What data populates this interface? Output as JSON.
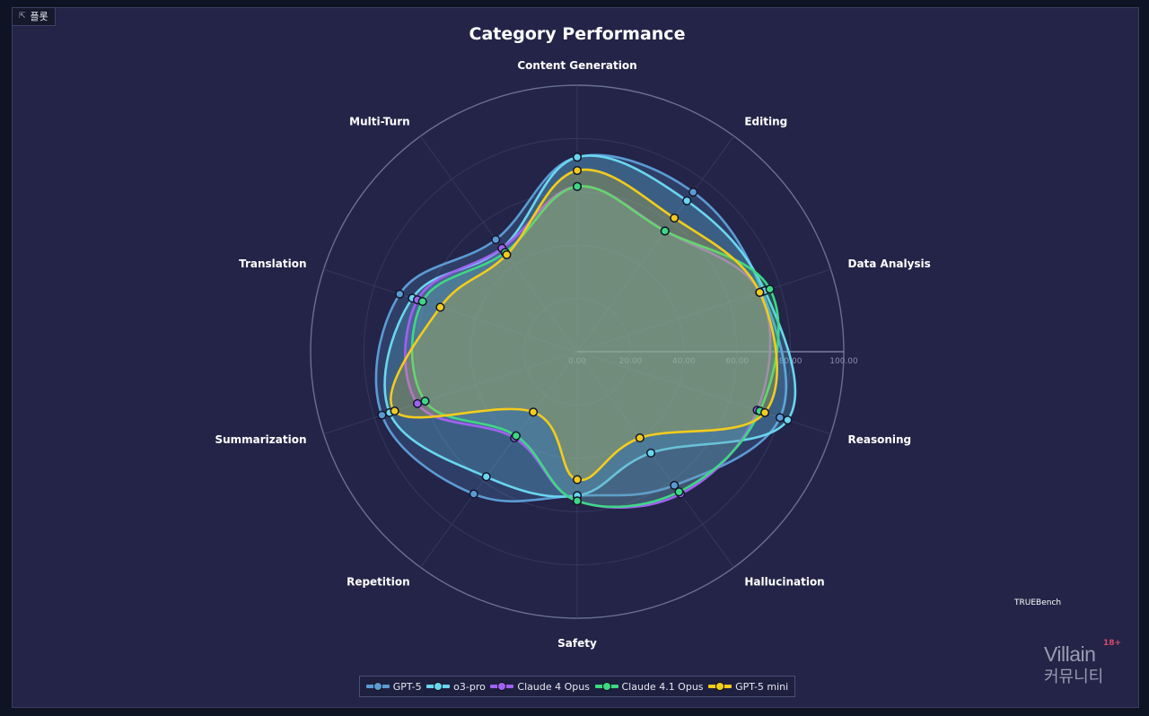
{
  "toolbar": {
    "plot_button_label": "플롯",
    "plot_button_icon": "expand-icon"
  },
  "chart_data": {
    "type": "radar",
    "title": "Category Performance",
    "axes": [
      "Content Generation",
      "Editing",
      "Data Analysis",
      "Reasoning",
      "Hallucination",
      "Safety",
      "Repetition",
      "Summarization",
      "Translation",
      "Multi-Turn"
    ],
    "radial_range": [
      0,
      100
    ],
    "radial_ticks": [
      "0.00",
      "20.00",
      "40.00",
      "60.00",
      "80.00",
      "100.00"
    ],
    "grid": true,
    "legend_position": "bottom",
    "annotation": "TRUEBench",
    "series": [
      {
        "name": "GPT-5",
        "color": "#5b9bd5",
        "values": [
          73,
          74,
          73,
          80,
          62,
          54,
          66,
          77,
          70,
          52
        ]
      },
      {
        "name": "o3-pro",
        "color": "#6ad6f0",
        "values": [
          73,
          70,
          74,
          83,
          47,
          54,
          58,
          74,
          65,
          48
        ]
      },
      {
        "name": "Claude 4 Opus",
        "color": "#a062f0",
        "values": [
          62,
          56,
          72,
          71,
          66,
          56,
          40,
          63,
          63,
          48
        ]
      },
      {
        "name": "Claude 4.1 Opus",
        "color": "#3ed884",
        "values": [
          62,
          56,
          76,
          72,
          65,
          56,
          39,
          60,
          61,
          46
        ]
      },
      {
        "name": "GPT-5 mini",
        "color": "#f3cc1c",
        "values": [
          68,
          62,
          72,
          74,
          40,
          48,
          28,
          72,
          54,
          45
        ]
      }
    ]
  },
  "watermark": {
    "brand": "Villain",
    "sub": "커뮤니티",
    "badge": "18+"
  }
}
